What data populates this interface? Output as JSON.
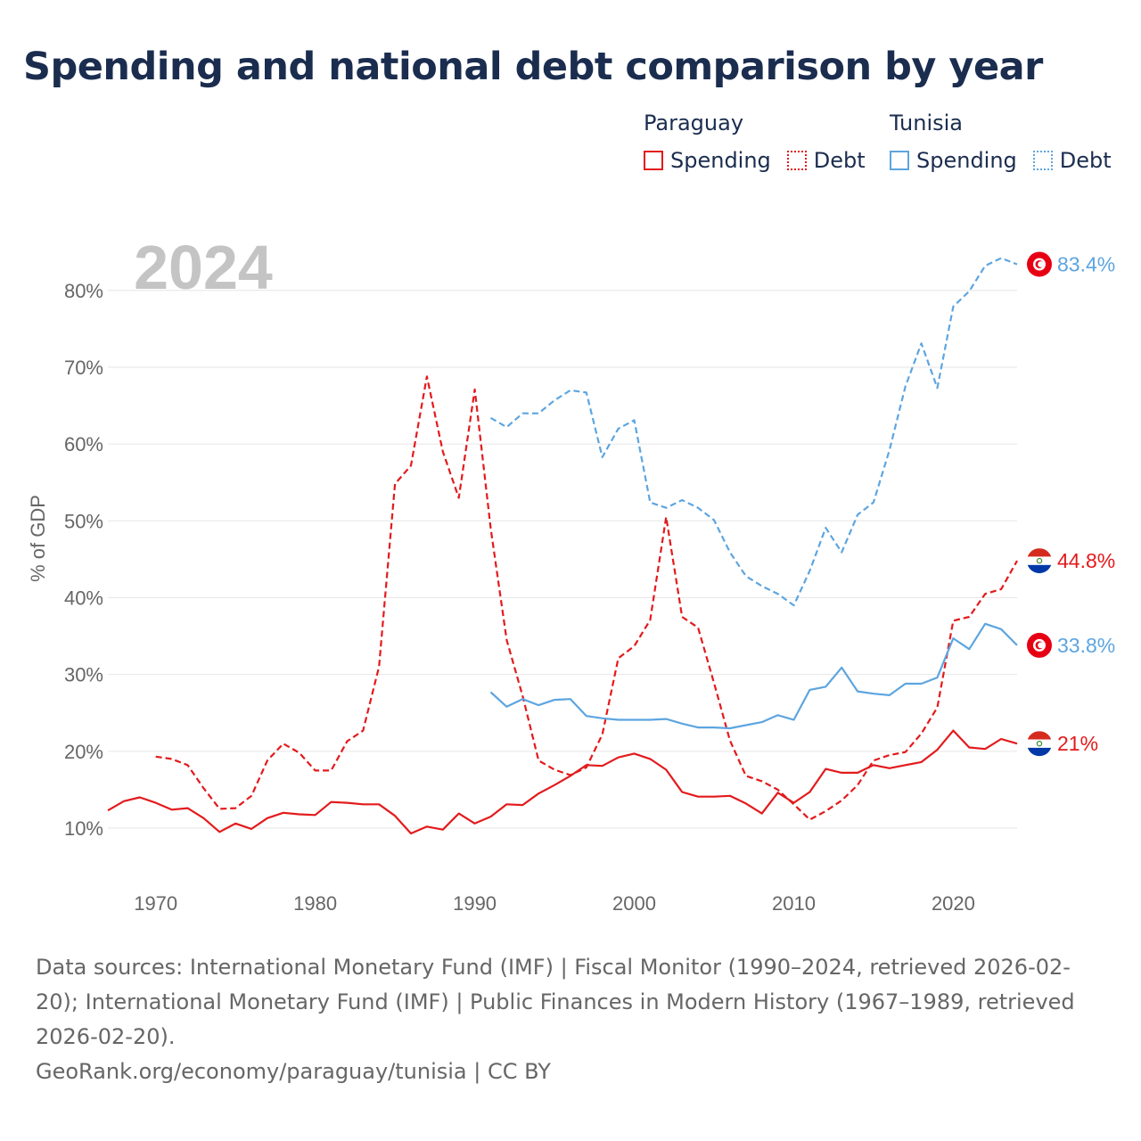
{
  "title": "Spending and national debt comparison by year",
  "legend": {
    "groups": [
      {
        "name": "Paraguay",
        "spending_label": "Spending",
        "debt_label": "Debt",
        "color": "#e31a1c"
      },
      {
        "name": "Tunisia",
        "spending_label": "Spending",
        "debt_label": "Debt",
        "color": "#5da5e0"
      }
    ]
  },
  "footer": {
    "sources": "Data sources: International Monetary Fund (IMF) | Fiscal Monitor (1990–2024, retrieved 2026-02-20); International Monetary Fund (IMF) | Public Finances in Modern History (1967–1989, retrieved 2026-02-20).",
    "credit": "GeoRank.org/economy/paraguay/tunisia | CC BY"
  },
  "chart_data": {
    "type": "line",
    "title": "Spending and national debt comparison by year",
    "watermark_year": "2024",
    "ylabel": "% of GDP",
    "xlabel": "",
    "xlim": [
      1967,
      2024
    ],
    "ylim": [
      3.5,
      91
    ],
    "grid": true,
    "x_ticks": [
      1970,
      1980,
      1990,
      2000,
      2010,
      2020
    ],
    "y_ticks": [
      10,
      20,
      30,
      40,
      50,
      60,
      70,
      80
    ],
    "y_tick_labels": [
      "10%",
      "20%",
      "30%",
      "40%",
      "50%",
      "60%",
      "70%",
      "80%"
    ],
    "series": [
      {
        "name": "Paraguay Spending",
        "country": "Paraguay",
        "measure": "Spending",
        "color": "#e31a1c",
        "dash": "solid",
        "end_label": "21%",
        "flag": "paraguay",
        "points": [
          [
            1967,
            12.3
          ],
          [
            1968,
            13.5
          ],
          [
            1969,
            14.0
          ],
          [
            1970,
            13.3
          ],
          [
            1971,
            12.4
          ],
          [
            1972,
            12.6
          ],
          [
            1973,
            11.3
          ],
          [
            1974,
            9.5
          ],
          [
            1975,
            10.6
          ],
          [
            1976,
            9.9
          ],
          [
            1977,
            11.3
          ],
          [
            1978,
            12.0
          ],
          [
            1979,
            11.8
          ],
          [
            1980,
            11.7
          ],
          [
            1981,
            13.4
          ],
          [
            1982,
            13.3
          ],
          [
            1983,
            13.1
          ],
          [
            1984,
            13.1
          ],
          [
            1985,
            11.6
          ],
          [
            1986,
            9.3
          ],
          [
            1987,
            10.2
          ],
          [
            1988,
            9.8
          ],
          [
            1989,
            11.9
          ],
          [
            1990,
            10.6
          ],
          [
            1991,
            11.5
          ],
          [
            1992,
            13.1
          ],
          [
            1993,
            13.0
          ],
          [
            1994,
            14.5
          ],
          [
            1995,
            15.6
          ],
          [
            1996,
            16.8
          ],
          [
            1997,
            18.2
          ],
          [
            1998,
            18.1
          ],
          [
            1999,
            19.2
          ],
          [
            2000,
            19.7
          ],
          [
            2001,
            19.0
          ],
          [
            2002,
            17.6
          ],
          [
            2003,
            14.7
          ],
          [
            2004,
            14.1
          ],
          [
            2005,
            14.1
          ],
          [
            2006,
            14.2
          ],
          [
            2007,
            13.2
          ],
          [
            2008,
            11.9
          ],
          [
            2009,
            14.6
          ],
          [
            2010,
            13.3
          ],
          [
            2011,
            14.7
          ],
          [
            2012,
            17.7
          ],
          [
            2013,
            17.2
          ],
          [
            2014,
            17.2
          ],
          [
            2015,
            18.2
          ],
          [
            2016,
            17.8
          ],
          [
            2017,
            18.2
          ],
          [
            2018,
            18.6
          ],
          [
            2019,
            20.2
          ],
          [
            2020,
            22.7
          ],
          [
            2021,
            20.5
          ],
          [
            2022,
            20.3
          ],
          [
            2023,
            21.6
          ],
          [
            2024,
            21.0
          ]
        ]
      },
      {
        "name": "Paraguay Debt",
        "country": "Paraguay",
        "measure": "Debt",
        "color": "#e31a1c",
        "dash": "dashed",
        "end_label": "44.8%",
        "flag": "paraguay",
        "points": [
          [
            1970,
            19.3
          ],
          [
            1971,
            19.0
          ],
          [
            1972,
            18.2
          ],
          [
            1973,
            15.2
          ],
          [
            1974,
            12.5
          ],
          [
            1975,
            12.6
          ],
          [
            1976,
            14.2
          ],
          [
            1977,
            18.8
          ],
          [
            1978,
            21.0
          ],
          [
            1979,
            19.8
          ],
          [
            1980,
            17.5
          ],
          [
            1981,
            17.5
          ],
          [
            1982,
            21.3
          ],
          [
            1983,
            22.7
          ],
          [
            1984,
            31.0
          ],
          [
            1985,
            54.8
          ],
          [
            1986,
            57.2
          ],
          [
            1987,
            68.8
          ],
          [
            1988,
            59.0
          ],
          [
            1989,
            53.0
          ],
          [
            1990,
            67.1
          ],
          [
            1991,
            49.0
          ],
          [
            1992,
            34.5
          ],
          [
            1993,
            27.2
          ],
          [
            1994,
            18.8
          ],
          [
            1995,
            17.6
          ],
          [
            1996,
            16.9
          ],
          [
            1997,
            17.9
          ],
          [
            1998,
            22.2
          ],
          [
            1999,
            32.1
          ],
          [
            2000,
            33.7
          ],
          [
            2001,
            37.1
          ],
          [
            2002,
            50.5
          ],
          [
            2003,
            37.5
          ],
          [
            2004,
            36.1
          ],
          [
            2005,
            28.9
          ],
          [
            2006,
            21.4
          ],
          [
            2007,
            16.8
          ],
          [
            2008,
            16.1
          ],
          [
            2009,
            15.0
          ],
          [
            2010,
            13.1
          ],
          [
            2011,
            11.1
          ],
          [
            2012,
            12.2
          ],
          [
            2013,
            13.6
          ],
          [
            2014,
            15.6
          ],
          [
            2015,
            18.8
          ],
          [
            2016,
            19.5
          ],
          [
            2017,
            19.9
          ],
          [
            2018,
            22.3
          ],
          [
            2019,
            25.7
          ],
          [
            2020,
            37.0
          ],
          [
            2021,
            37.5
          ],
          [
            2022,
            40.5
          ],
          [
            2023,
            41.1
          ],
          [
            2024,
            44.8
          ]
        ]
      },
      {
        "name": "Tunisia Spending",
        "country": "Tunisia",
        "measure": "Spending",
        "color": "#5da5e0",
        "dash": "solid",
        "end_label": "33.8%",
        "flag": "tunisia",
        "points": [
          [
            1991,
            27.7
          ],
          [
            1992,
            25.8
          ],
          [
            1993,
            26.8
          ],
          [
            1994,
            26.0
          ],
          [
            1995,
            26.7
          ],
          [
            1996,
            26.8
          ],
          [
            1997,
            24.6
          ],
          [
            1998,
            24.3
          ],
          [
            1999,
            24.1
          ],
          [
            2000,
            24.1
          ],
          [
            2001,
            24.1
          ],
          [
            2002,
            24.2
          ],
          [
            2003,
            23.6
          ],
          [
            2004,
            23.1
          ],
          [
            2005,
            23.1
          ],
          [
            2006,
            23.0
          ],
          [
            2007,
            23.4
          ],
          [
            2008,
            23.8
          ],
          [
            2009,
            24.7
          ],
          [
            2010,
            24.1
          ],
          [
            2011,
            28.0
          ],
          [
            2012,
            28.4
          ],
          [
            2013,
            30.9
          ],
          [
            2014,
            27.8
          ],
          [
            2015,
            27.5
          ],
          [
            2016,
            27.3
          ],
          [
            2017,
            28.8
          ],
          [
            2018,
            28.8
          ],
          [
            2019,
            29.6
          ],
          [
            2020,
            34.7
          ],
          [
            2021,
            33.3
          ],
          [
            2022,
            36.6
          ],
          [
            2023,
            35.9
          ],
          [
            2024,
            33.8
          ]
        ]
      },
      {
        "name": "Tunisia Debt",
        "country": "Tunisia",
        "measure": "Debt",
        "color": "#5da5e0",
        "dash": "dashed",
        "end_label": "83.4%",
        "flag": "tunisia",
        "points": [
          [
            1991,
            63.4
          ],
          [
            1992,
            62.2
          ],
          [
            1993,
            64.0
          ],
          [
            1994,
            64.0
          ],
          [
            1995,
            65.7
          ],
          [
            1996,
            67.0
          ],
          [
            1997,
            66.7
          ],
          [
            1998,
            58.3
          ],
          [
            1999,
            62.0
          ],
          [
            2000,
            63.1
          ],
          [
            2001,
            52.4
          ],
          [
            2002,
            51.7
          ],
          [
            2003,
            52.7
          ],
          [
            2004,
            51.7
          ],
          [
            2005,
            50.1
          ],
          [
            2006,
            45.9
          ],
          [
            2007,
            42.8
          ],
          [
            2008,
            41.5
          ],
          [
            2009,
            40.5
          ],
          [
            2010,
            39.0
          ],
          [
            2011,
            43.5
          ],
          [
            2012,
            49.1
          ],
          [
            2013,
            45.9
          ],
          [
            2014,
            50.8
          ],
          [
            2015,
            52.4
          ],
          [
            2016,
            59.2
          ],
          [
            2017,
            67.5
          ],
          [
            2018,
            73.1
          ],
          [
            2019,
            67.3
          ],
          [
            2020,
            77.9
          ],
          [
            2021,
            79.9
          ],
          [
            2022,
            83.2
          ],
          [
            2023,
            84.2
          ],
          [
            2024,
            83.4
          ]
        ]
      }
    ]
  }
}
